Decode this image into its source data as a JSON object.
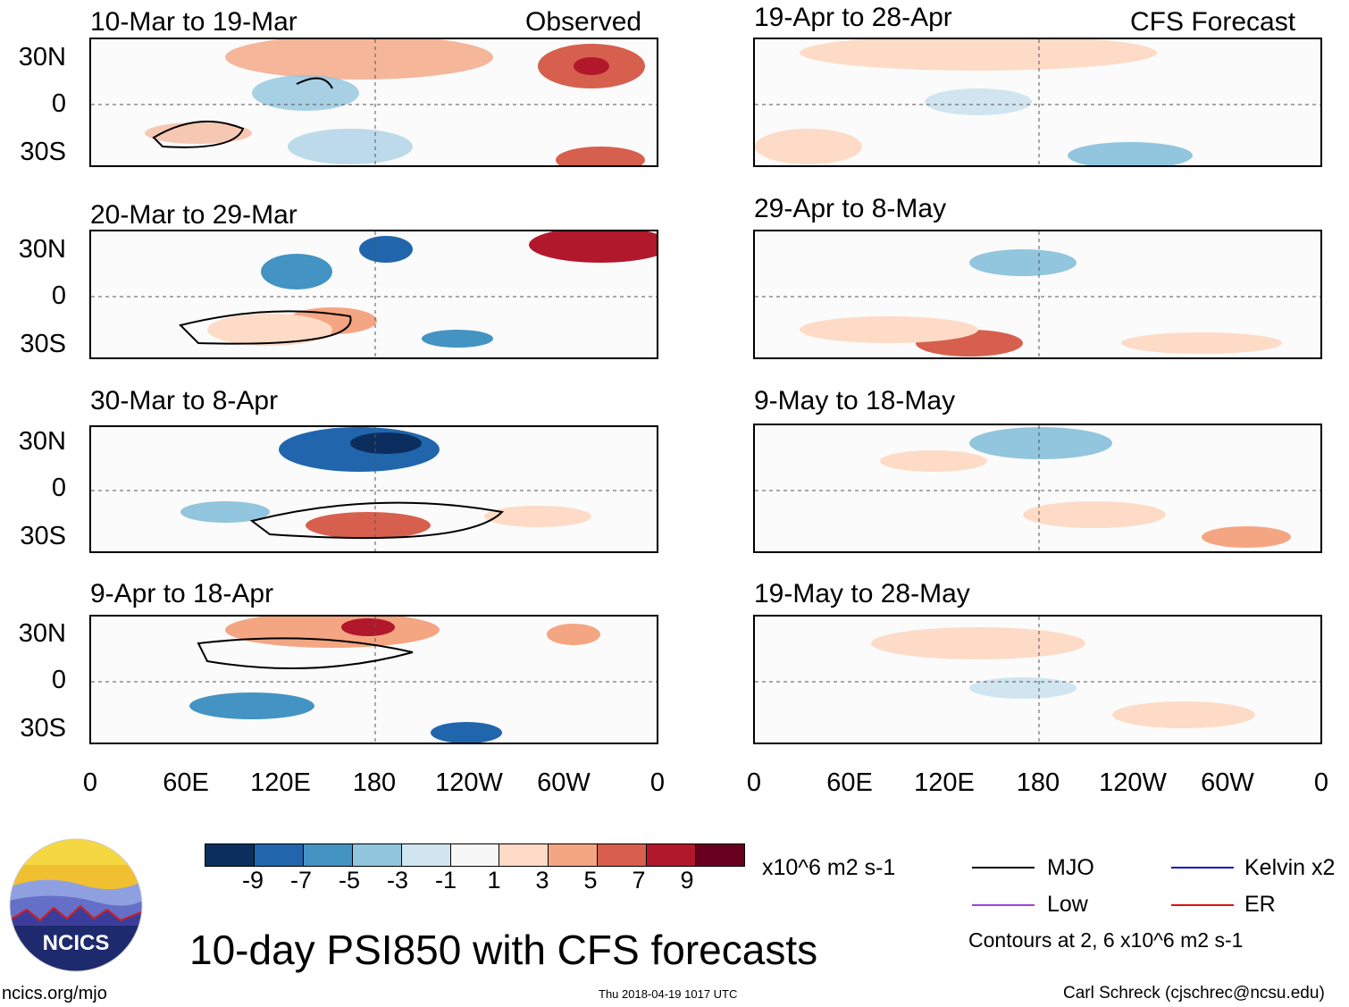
{
  "header": {
    "left_label": "Observed",
    "right_label": "CFS Forecast"
  },
  "latitude_labels": [
    "30N",
    "0",
    "30S"
  ],
  "longitude_labels": [
    "0",
    "60E",
    "120E",
    "180",
    "120W",
    "60W",
    "0"
  ],
  "panels": [
    {
      "title": "10-Mar to 19-Mar",
      "column": "observed"
    },
    {
      "title": "20-Mar to 29-Mar",
      "column": "observed"
    },
    {
      "title": "30-Mar to 8-Apr",
      "column": "observed"
    },
    {
      "title": "9-Apr to 18-Apr",
      "column": "observed"
    },
    {
      "title": "19-Apr to 28-Apr",
      "column": "forecast"
    },
    {
      "title": "29-Apr to 8-May",
      "column": "forecast"
    },
    {
      "title": "9-May to 18-May",
      "column": "forecast"
    },
    {
      "title": "19-May to 28-May",
      "column": "forecast"
    }
  ],
  "colorbar": {
    "colors": [
      "#0b2e5f",
      "#2166ac",
      "#4393c3",
      "#92c5de",
      "#d1e5f0",
      "#f7f7f7",
      "#fddbc7",
      "#f4a582",
      "#d6604d",
      "#b2182b",
      "#67001f"
    ],
    "labels": [
      "-9",
      "-7",
      "-5",
      "-3",
      "-1",
      "1",
      "3",
      "5",
      "7",
      "9"
    ],
    "units": "x10^6 m2 s-1"
  },
  "legend": {
    "items": [
      {
        "label": "MJO",
        "color": "#000000"
      },
      {
        "label": "Kelvin x2",
        "color": "#1010d0"
      },
      {
        "label": "Low",
        "color": "#a040e0"
      },
      {
        "label": "ER",
        "color": "#e01010"
      }
    ],
    "contours_note": "Contours at 2, 6 x10^6 m2 s-1"
  },
  "logo": {
    "text": "NCICS"
  },
  "main_title": "10-day PSI850 with CFS forecasts",
  "footer": {
    "url": "ncics.org/mjo",
    "timestamp": "Thu 2018-04-19 1017 UTC",
    "author": "Carl Schreck (cjschrec@ncsu.edu)"
  }
}
